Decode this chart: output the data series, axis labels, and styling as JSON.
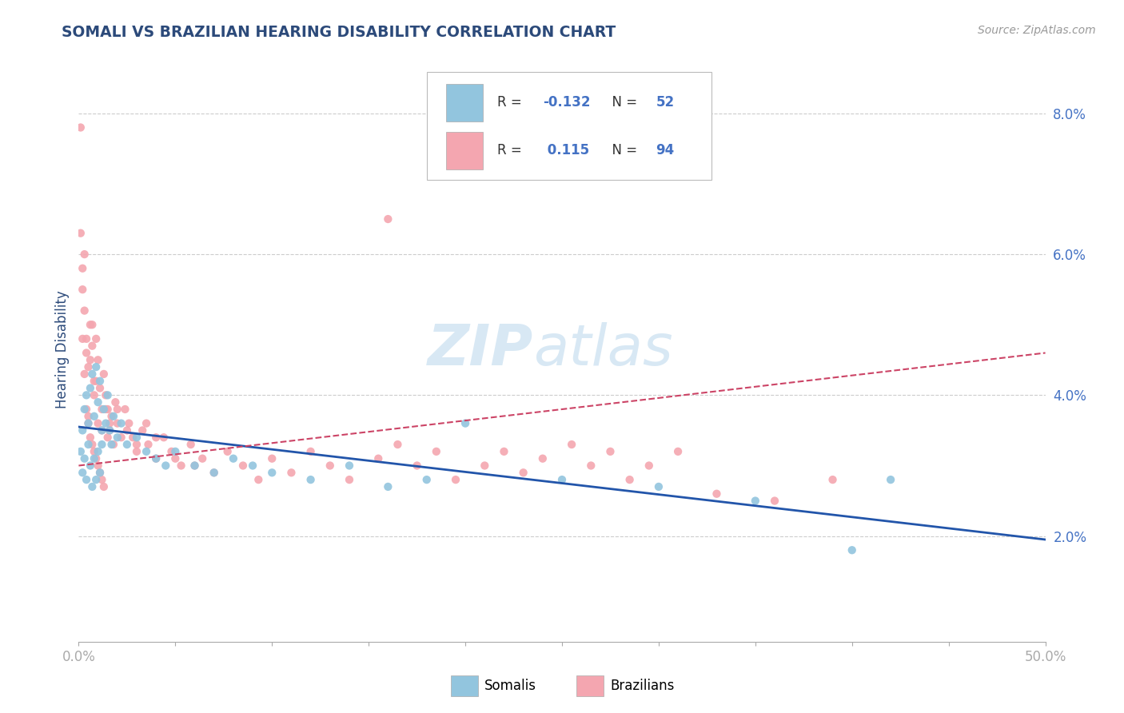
{
  "title": "SOMALI VS BRAZILIAN HEARING DISABILITY CORRELATION CHART",
  "source": "Source: ZipAtlas.com",
  "ylabel": "Hearing Disability",
  "xlim": [
    0.0,
    0.5
  ],
  "ylim": [
    0.005,
    0.088
  ],
  "ytick_vals": [
    0.02,
    0.04,
    0.06,
    0.08
  ],
  "ytick_labels": [
    "2.0%",
    "4.0%",
    "6.0%",
    "8.0%"
  ],
  "xtick_vals": [
    0.0,
    0.05,
    0.1,
    0.15,
    0.2,
    0.25,
    0.3,
    0.35,
    0.4,
    0.45,
    0.5
  ],
  "xtick_labels": [
    "0.0%",
    "",
    "",
    "",
    "",
    "",
    "",
    "",
    "",
    "",
    "50.0%"
  ],
  "somali_color": "#92c5de",
  "brazilian_color": "#f4a6b0",
  "somali_line_color": "#2255aa",
  "brazilian_line_color": "#cc4466",
  "R_somali": -0.132,
  "N_somali": 52,
  "R_brazilian": 0.115,
  "N_brazilian": 94,
  "title_color": "#2c4a7a",
  "axis_label_color": "#2c4a7a",
  "tick_color": "#4472c4",
  "somali_x": [
    0.001,
    0.002,
    0.002,
    0.003,
    0.003,
    0.004,
    0.004,
    0.005,
    0.005,
    0.006,
    0.006,
    0.007,
    0.007,
    0.008,
    0.008,
    0.009,
    0.009,
    0.01,
    0.01,
    0.011,
    0.011,
    0.012,
    0.012,
    0.013,
    0.014,
    0.015,
    0.016,
    0.017,
    0.018,
    0.02,
    0.022,
    0.025,
    0.03,
    0.035,
    0.04,
    0.045,
    0.05,
    0.06,
    0.07,
    0.08,
    0.09,
    0.1,
    0.12,
    0.14,
    0.16,
    0.18,
    0.2,
    0.25,
    0.3,
    0.35,
    0.4,
    0.42
  ],
  "somali_y": [
    0.032,
    0.035,
    0.029,
    0.038,
    0.031,
    0.04,
    0.028,
    0.036,
    0.033,
    0.041,
    0.03,
    0.043,
    0.027,
    0.037,
    0.031,
    0.044,
    0.028,
    0.039,
    0.032,
    0.042,
    0.029,
    0.035,
    0.033,
    0.038,
    0.036,
    0.04,
    0.035,
    0.033,
    0.037,
    0.034,
    0.036,
    0.033,
    0.034,
    0.032,
    0.031,
    0.03,
    0.032,
    0.03,
    0.029,
    0.031,
    0.03,
    0.029,
    0.028,
    0.03,
    0.027,
    0.028,
    0.036,
    0.028,
    0.027,
    0.025,
    0.018,
    0.028
  ],
  "brazilian_x": [
    0.001,
    0.001,
    0.002,
    0.002,
    0.003,
    0.003,
    0.004,
    0.004,
    0.005,
    0.005,
    0.006,
    0.006,
    0.007,
    0.007,
    0.008,
    0.008,
    0.009,
    0.009,
    0.01,
    0.01,
    0.011,
    0.011,
    0.012,
    0.012,
    0.013,
    0.013,
    0.014,
    0.015,
    0.016,
    0.017,
    0.018,
    0.019,
    0.02,
    0.022,
    0.024,
    0.026,
    0.028,
    0.03,
    0.033,
    0.036,
    0.04,
    0.044,
    0.048,
    0.053,
    0.058,
    0.064,
    0.07,
    0.077,
    0.085,
    0.093,
    0.1,
    0.11,
    0.12,
    0.13,
    0.14,
    0.155,
    0.165,
    0.175,
    0.185,
    0.195,
    0.21,
    0.22,
    0.23,
    0.24,
    0.255,
    0.265,
    0.275,
    0.285,
    0.295,
    0.31,
    0.005,
    0.01,
    0.015,
    0.02,
    0.025,
    0.03,
    0.035,
    0.04,
    0.05,
    0.06,
    0.002,
    0.003,
    0.004,
    0.006,
    0.007,
    0.008,
    0.009,
    0.012,
    0.014,
    0.016,
    0.33,
    0.36,
    0.39,
    0.16
  ],
  "brazilian_y": [
    0.078,
    0.063,
    0.058,
    0.048,
    0.052,
    0.043,
    0.046,
    0.038,
    0.044,
    0.036,
    0.05,
    0.034,
    0.047,
    0.033,
    0.042,
    0.032,
    0.048,
    0.031,
    0.045,
    0.03,
    0.041,
    0.029,
    0.038,
    0.028,
    0.043,
    0.027,
    0.04,
    0.038,
    0.035,
    0.037,
    0.033,
    0.039,
    0.036,
    0.034,
    0.038,
    0.036,
    0.034,
    0.032,
    0.035,
    0.033,
    0.031,
    0.034,
    0.032,
    0.03,
    0.033,
    0.031,
    0.029,
    0.032,
    0.03,
    0.028,
    0.031,
    0.029,
    0.032,
    0.03,
    0.028,
    0.031,
    0.033,
    0.03,
    0.032,
    0.028,
    0.03,
    0.032,
    0.029,
    0.031,
    0.033,
    0.03,
    0.032,
    0.028,
    0.03,
    0.032,
    0.037,
    0.036,
    0.034,
    0.038,
    0.035,
    0.033,
    0.036,
    0.034,
    0.031,
    0.03,
    0.055,
    0.06,
    0.048,
    0.045,
    0.05,
    0.04,
    0.042,
    0.035,
    0.038,
    0.036,
    0.026,
    0.025,
    0.028,
    0.065
  ],
  "somali_trend_x": [
    0.0,
    0.5
  ],
  "somali_trend_y": [
    0.0355,
    0.0195
  ],
  "brazilian_trend_x": [
    0.0,
    0.5
  ],
  "brazilian_trend_y": [
    0.03,
    0.046
  ]
}
